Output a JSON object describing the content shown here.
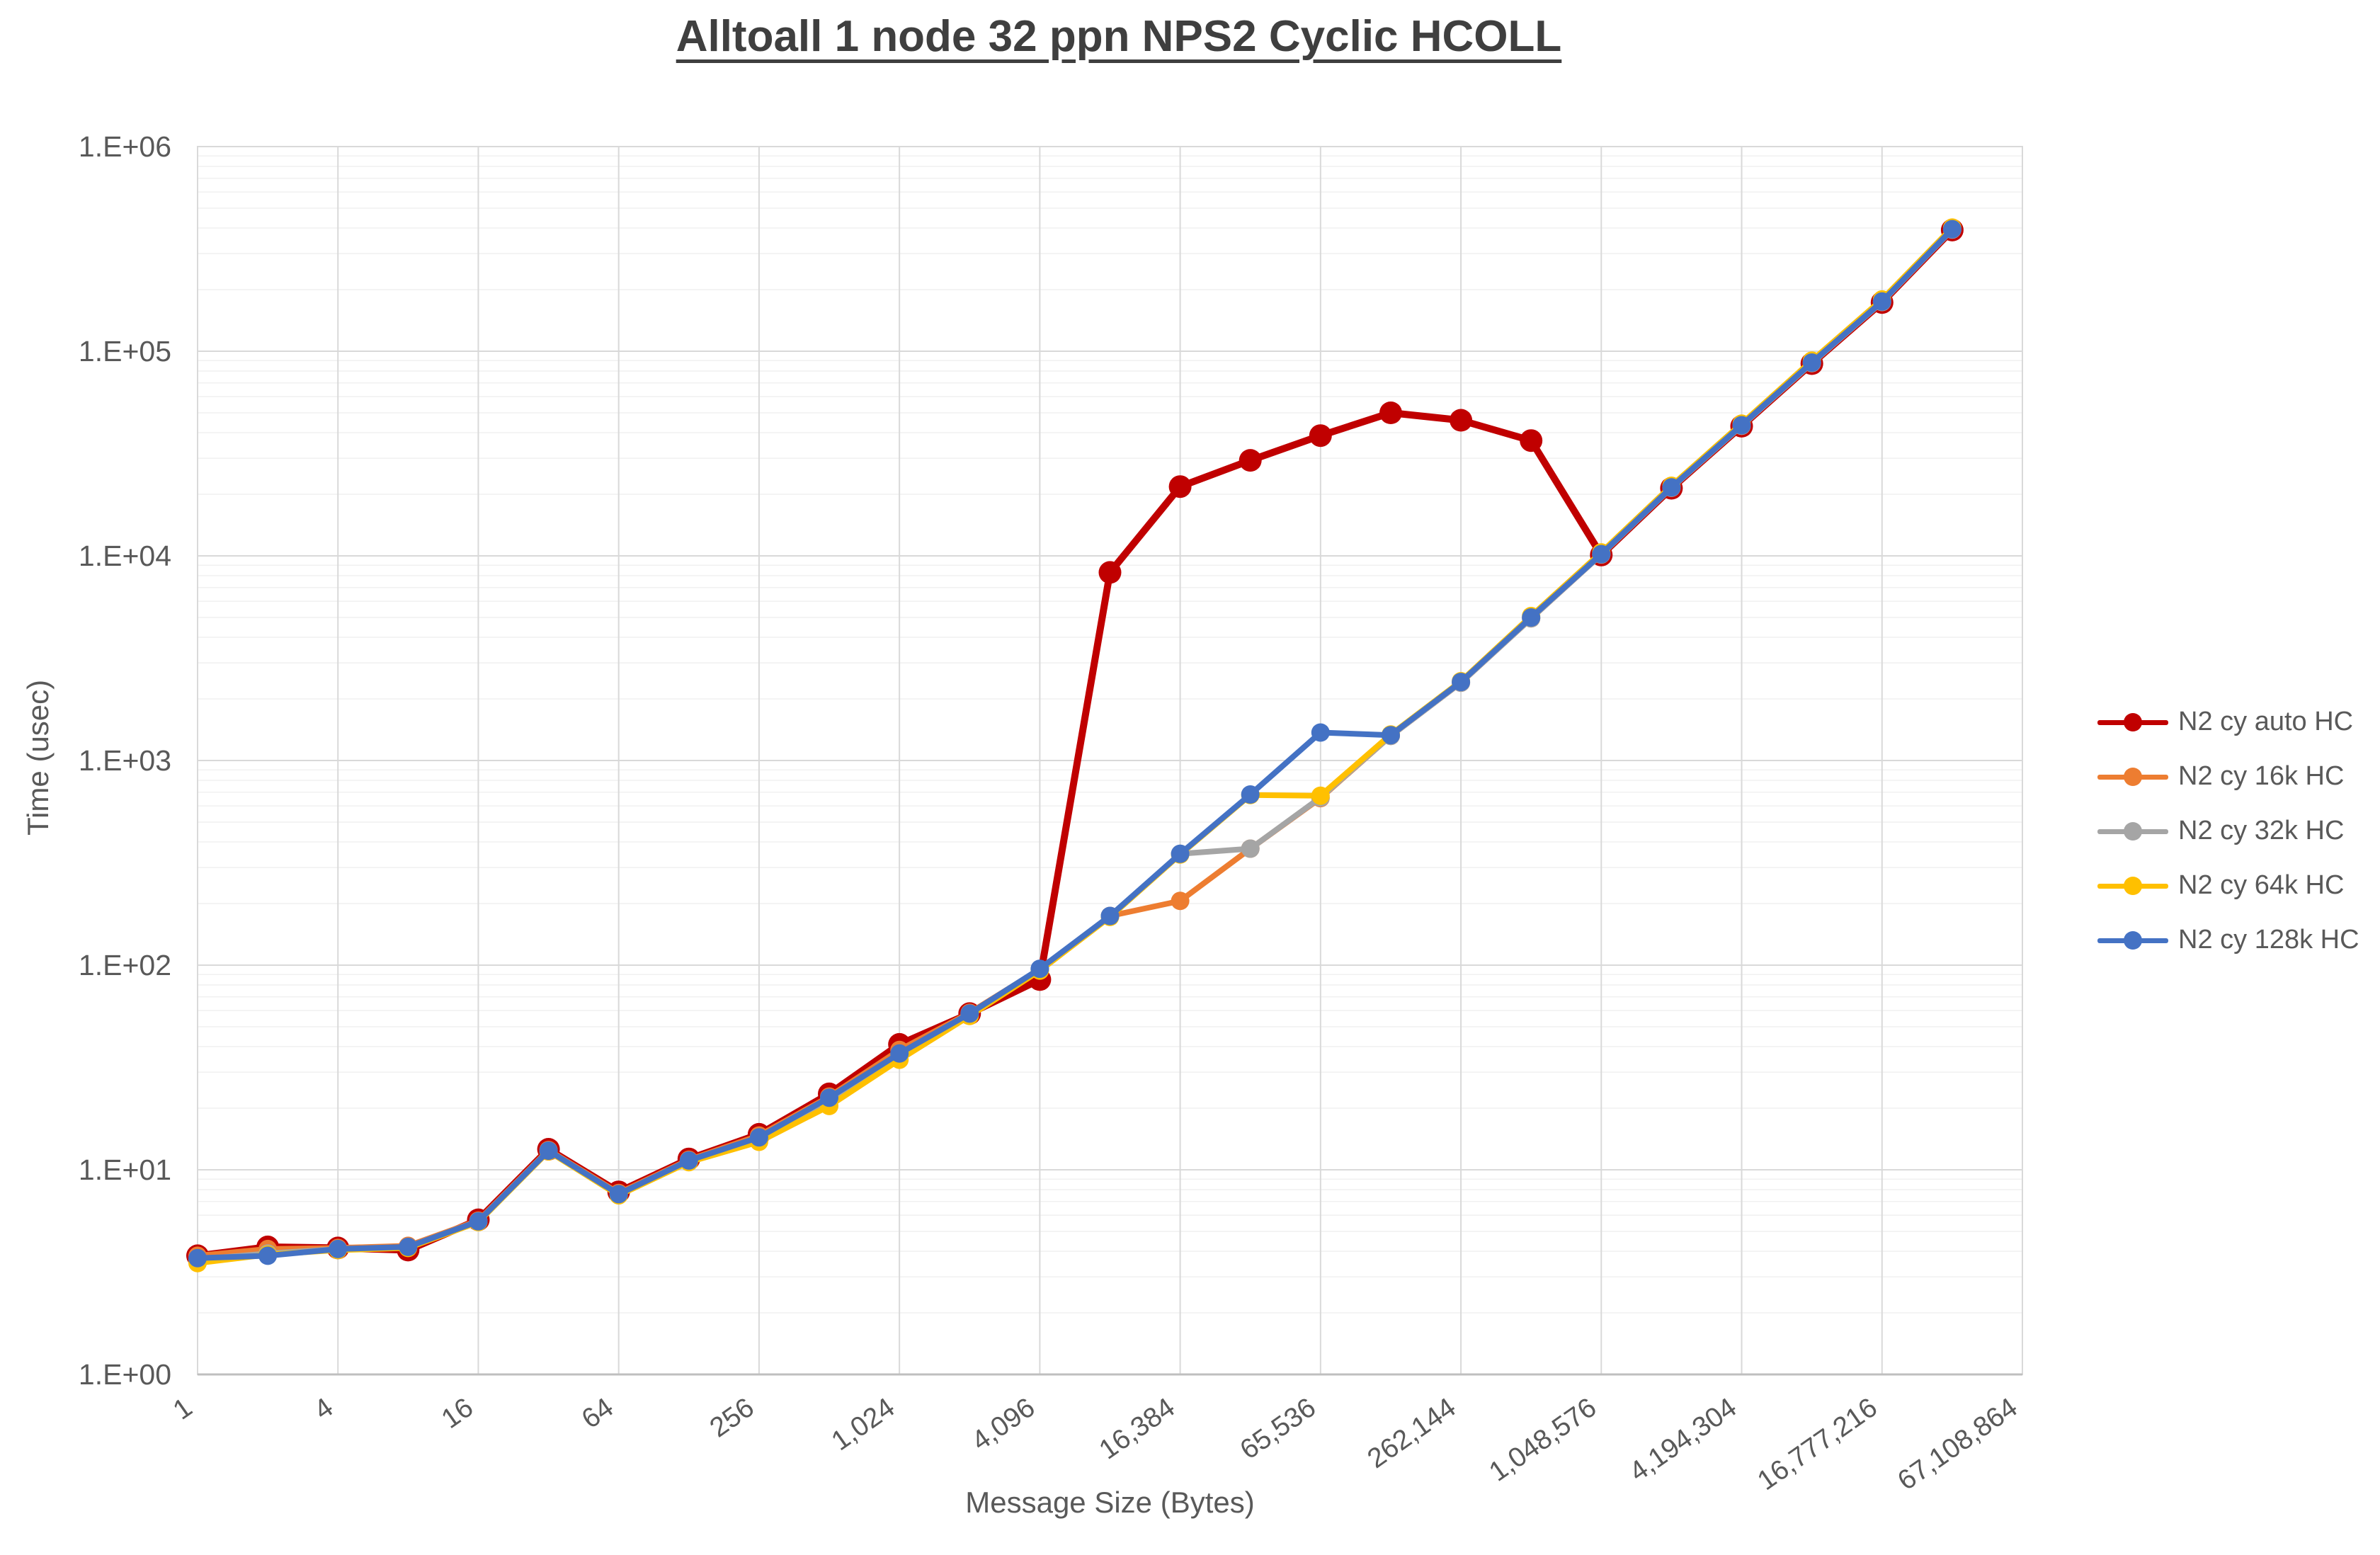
{
  "title": "Alltoall 1 node 32 ppn NPS2 Cyclic HCOLL",
  "axes": {
    "x_title": "Message Size (Bytes)",
    "y_title": "Time (usec)"
  },
  "chart_data": {
    "type": "line",
    "title": "Alltoall 1 node 32 ppn NPS2 Cyclic HCOLL",
    "xlabel": "Message Size (Bytes)",
    "ylabel": "Time (usec)",
    "x_scale": "log",
    "y_scale": "log",
    "xlim": [
      1,
      67108864
    ],
    "ylim": [
      1,
      1000000
    ],
    "grid": true,
    "legend_position": "right",
    "x": [
      1,
      2,
      4,
      8,
      16,
      32,
      64,
      128,
      256,
      512,
      1024,
      2048,
      4096,
      8192,
      16384,
      32768,
      65536,
      131072,
      262144,
      524288,
      1048576,
      2097152,
      4194304,
      8388608,
      16777216,
      33554432
    ],
    "x_tick_labels": [
      "1",
      "4",
      "16",
      "64",
      "256",
      "1,024",
      "4,096",
      "16,384",
      "65,536",
      "262,144",
      "1,048,576",
      "4,194,304",
      "16,777,216",
      "67,108,864"
    ],
    "y_tick_labels": [
      "1.E+00",
      "1.E+01",
      "1.E+02",
      "1.E+03",
      "1.E+04",
      "1.E+05",
      "1.E+06"
    ],
    "series": [
      {
        "name": "N2 cy auto HC",
        "color": "#C00000",
        "values": [
          3.8,
          4.2,
          4.15,
          4.05,
          5.7,
          12.6,
          7.8,
          11.3,
          14.9,
          23.5,
          41,
          58,
          85,
          8300,
          21800,
          29300,
          38700,
          50000,
          46000,
          36600,
          10100,
          21400,
          43000,
          87000,
          173000,
          391000
        ]
      },
      {
        "name": "N2 cy 16k HC",
        "color": "#ED7D31",
        "values": [
          3.8,
          4.1,
          4.15,
          4.25,
          5.65,
          12.5,
          7.7,
          11.2,
          14.7,
          22.8,
          38.5,
          58.5,
          95.5,
          174,
          206,
          371,
          655,
          1320,
          2400,
          4950,
          10150,
          21500,
          43200,
          87500,
          174000,
          393000
        ]
      },
      {
        "name": "N2 cy 32k HC",
        "color": "#A5A5A5",
        "values": [
          3.65,
          3.9,
          4.1,
          4.2,
          5.6,
          12.4,
          7.6,
          11.0,
          14.2,
          22.0,
          36.5,
          57.5,
          95.5,
          173.5,
          350,
          371,
          660,
          1320,
          2400,
          4950,
          10150,
          21500,
          43200,
          87500,
          174000,
          393000
        ]
      },
      {
        "name": "N2 cy 64k HC",
        "color": "#FFC000",
        "values": [
          3.5,
          3.85,
          4.05,
          4.15,
          5.55,
          12.3,
          7.5,
          10.9,
          13.7,
          20.5,
          34.5,
          56.5,
          94,
          172,
          347,
          678,
          673,
          1340,
          2440,
          5080,
          10400,
          22000,
          44300,
          90000,
          179000,
          402000
        ]
      },
      {
        "name": "N2 cy 128k HC",
        "color": "#4472C4",
        "values": [
          3.7,
          3.8,
          4.1,
          4.2,
          5.6,
          12.4,
          7.6,
          11.1,
          14.4,
          22.5,
          37,
          58,
          96,
          174,
          350,
          682,
          1370,
          1330,
          2420,
          5000,
          10200,
          21600,
          43500,
          88000,
          175000,
          395000
        ]
      }
    ]
  }
}
